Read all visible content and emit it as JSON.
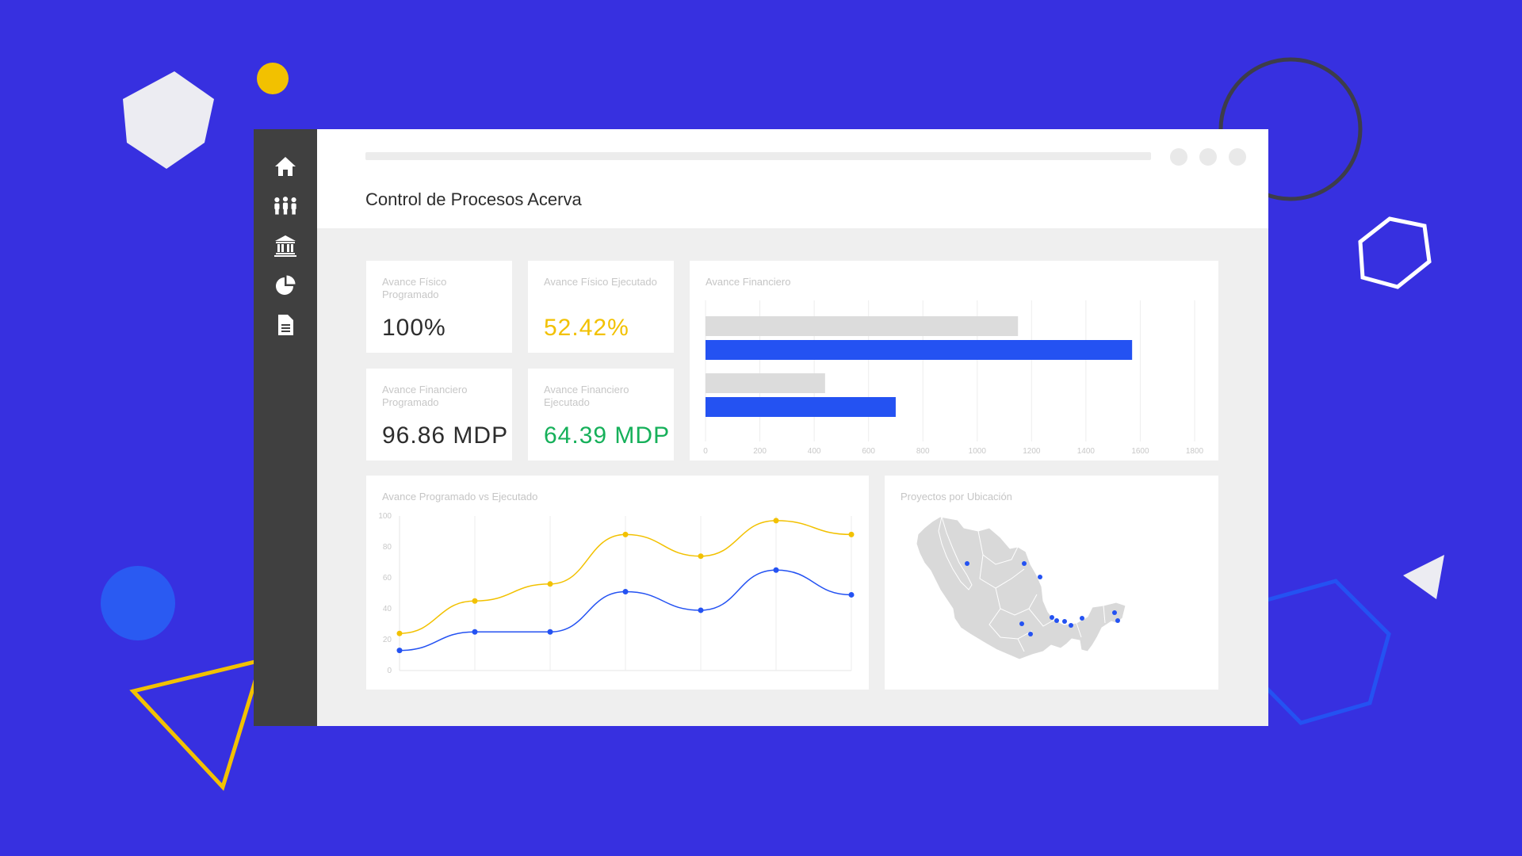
{
  "app": {
    "title": "Control de Procesos Acerva"
  },
  "sidebar": {
    "items": [
      {
        "icon": "home-icon"
      },
      {
        "icon": "users-icon"
      },
      {
        "icon": "bank-icon"
      },
      {
        "icon": "pie-chart-icon"
      },
      {
        "icon": "document-icon"
      }
    ]
  },
  "kpis": [
    {
      "label": "Avance Físico Programado",
      "value": "100%",
      "color": "#2d2d2d"
    },
    {
      "label": "Avance Físico Ejecutado",
      "value": "52.42%",
      "color": "#f2c100"
    },
    {
      "label": "Avance Financiero Programado",
      "value": "96.86 MDP",
      "color": "#2d2d2d"
    },
    {
      "label": "Avance Financiero Ejecutado",
      "value": "64.39 MDP",
      "color": "#16b05a"
    }
  ],
  "colors": {
    "background": "#3730e0",
    "blue": "#2452f2",
    "yellow": "#f2c100",
    "gray_bar": "#dcdcdc"
  },
  "chart_data": [
    {
      "type": "bar",
      "orientation": "horizontal",
      "title": "Avance Financiero",
      "xlim": [
        0,
        1800
      ],
      "xticks": [
        0,
        200,
        400,
        600,
        800,
        1000,
        1200,
        1400,
        1600,
        1800
      ],
      "bars": [
        {
          "value": 1150,
          "color": "#dcdcdc"
        },
        {
          "value": 1570,
          "color": "#2452f2"
        },
        {
          "value": 440,
          "color": "#dcdcdc"
        },
        {
          "value": 700,
          "color": "#2452f2"
        }
      ],
      "grid": true
    },
    {
      "type": "line",
      "title": "Avance Programado vs Ejecutado",
      "ylim": [
        0,
        100
      ],
      "yticks": [
        0,
        20,
        40,
        60,
        80,
        100
      ],
      "x": [
        0,
        1,
        2,
        3,
        4,
        5,
        6
      ],
      "series": [
        {
          "color": "#f2c100",
          "values": [
            24,
            45,
            56,
            88,
            74,
            97,
            88
          ]
        },
        {
          "color": "#2452f2",
          "values": [
            13,
            25,
            25,
            51,
            39,
            65,
            49
          ]
        }
      ],
      "grid": true
    }
  ],
  "map": {
    "title": "Proyectos por Ubicación",
    "marker_color": "#2452f2",
    "marker_count": 12
  }
}
